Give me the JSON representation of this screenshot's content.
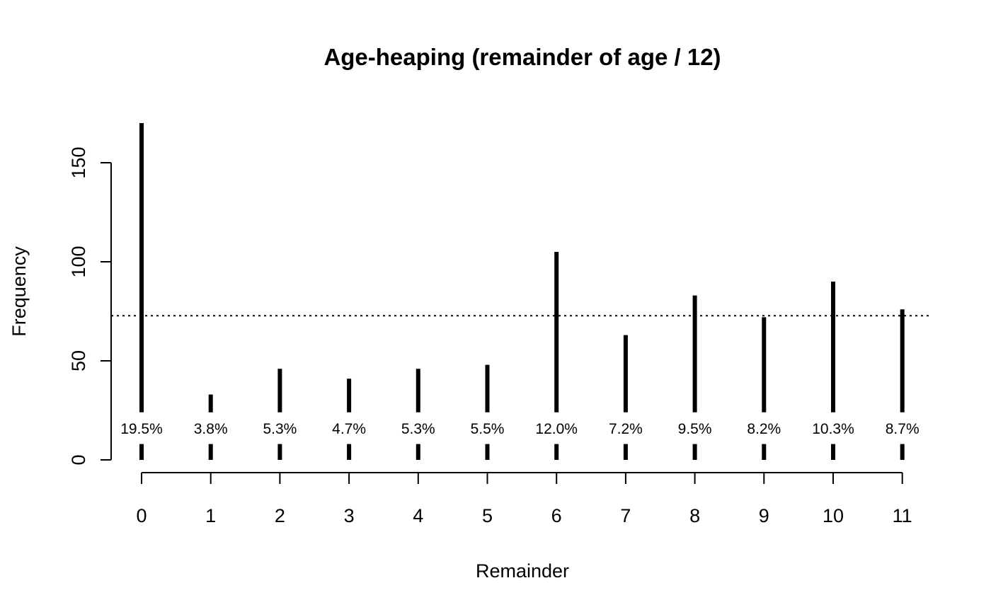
{
  "chart_data": {
    "type": "bar",
    "title": "Age-heaping (remainder of age / 12)",
    "xlabel": "Remainder",
    "ylabel": "Frequency",
    "categories": [
      "0",
      "1",
      "2",
      "3",
      "4",
      "5",
      "6",
      "7",
      "8",
      "9",
      "10",
      "11"
    ],
    "values": [
      170,
      33,
      46,
      41,
      46,
      48,
      105,
      63,
      83,
      72,
      90,
      76
    ],
    "percent_labels": [
      "19.5%",
      "3.8%",
      "5.3%",
      "4.7%",
      "5.3%",
      "5.5%",
      "12.0%",
      "7.2%",
      "9.5%",
      "8.2%",
      "10.3%",
      "8.7%"
    ],
    "y_ticks": [
      0,
      50,
      100,
      150
    ],
    "y_tick_labels": [
      "0",
      "50",
      "100",
      "150"
    ],
    "reference_line": 72.75,
    "ylim": [
      0,
      170
    ],
    "grid": false,
    "legend": "none"
  }
}
